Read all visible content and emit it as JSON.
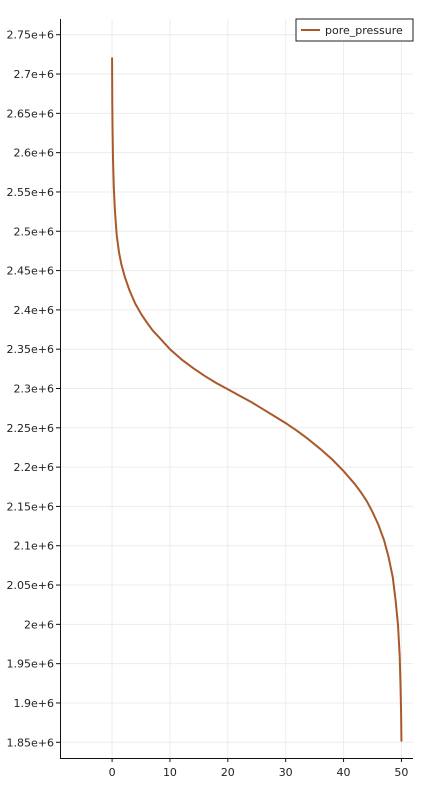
{
  "chart_data": {
    "type": "line",
    "title": "",
    "xlabel": "",
    "ylabel": "",
    "xlim": [
      -9,
      52
    ],
    "ylim": [
      1830000,
      2770000
    ],
    "grid": true,
    "legend_placement": "top-right",
    "x_ticks": [
      0,
      10,
      20,
      30,
      40,
      50
    ],
    "x_tick_labels": [
      "0",
      "10",
      "20",
      "30",
      "40",
      "50"
    ],
    "y_ticks": [
      1850000,
      1900000,
      1950000,
      2000000,
      2050000,
      2100000,
      2150000,
      2200000,
      2250000,
      2300000,
      2350000,
      2400000,
      2450000,
      2500000,
      2550000,
      2600000,
      2650000,
      2700000,
      2750000
    ],
    "y_tick_labels": [
      "1.85e+6",
      "1.9e+6",
      "1.95e+6",
      "2e+6",
      "2.05e+6",
      "2.1e+6",
      "2.15e+6",
      "2.2e+6",
      "2.25e+6",
      "2.3e+6",
      "2.35e+6",
      "2.4e+6",
      "2.45e+6",
      "2.5e+6",
      "2.55e+6",
      "2.6e+6",
      "2.65e+6",
      "2.7e+6",
      "2.75e+6"
    ],
    "series": [
      {
        "name": "pore_pressure",
        "color": "#a9582a",
        "x": [
          0,
          0.03,
          0.08,
          0.15,
          0.3,
          0.5,
          0.8,
          1.2,
          1.6,
          2.2,
          3,
          4,
          5,
          6,
          7,
          8,
          10,
          12,
          14,
          16,
          18,
          20,
          22,
          24,
          26,
          28,
          30,
          32,
          34,
          36,
          38,
          40,
          42,
          43,
          44,
          45,
          46,
          47,
          47.8,
          48.5,
          49,
          49.4,
          49.7,
          49.85,
          49.95,
          50
        ],
        "y": [
          2720000,
          2665000,
          2630000,
          2595000,
          2555000,
          2525000,
          2495000,
          2473000,
          2458000,
          2442000,
          2425000,
          2408000,
          2395000,
          2384000,
          2374000,
          2366000,
          2350000,
          2337000,
          2326000,
          2316000,
          2307000,
          2299000,
          2291000,
          2283000,
          2274000,
          2265000,
          2256000,
          2246000,
          2235000,
          2223000,
          2210000,
          2195000,
          2178000,
          2168000,
          2157000,
          2143000,
          2127000,
          2107000,
          2085000,
          2060000,
          2030000,
          2000000,
          1960000,
          1920000,
          1885000,
          1852000
        ]
      }
    ]
  }
}
